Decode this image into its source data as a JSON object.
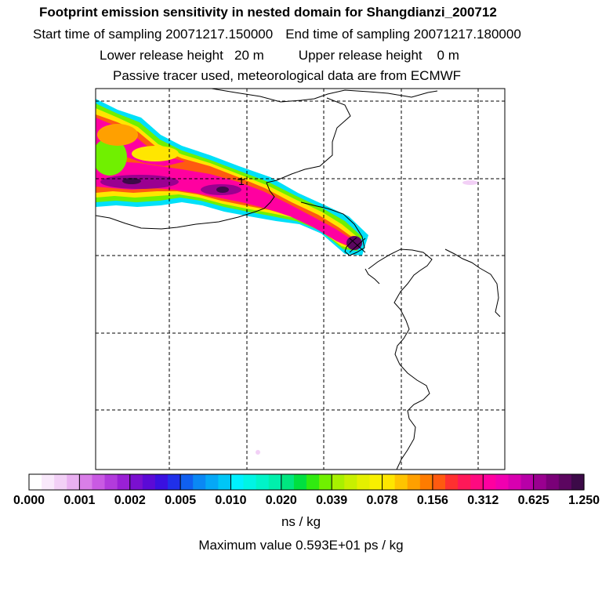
{
  "header": {
    "title": "Footprint emission sensitivity in nested domain for Shangdianzi_200712",
    "start_label": "Start time of sampling 20071217.150000",
    "end_label": "End time of sampling 20071217.180000",
    "lower_label": "Lower release height",
    "lower_value": "20 m",
    "upper_label": "Upper release height",
    "upper_value": "0 m",
    "note": "Passive tracer used, meteorological data are from ECMWF"
  },
  "chart_data": {
    "type": "heatmap",
    "title": "Footprint emission sensitivity in nested domain for Shangdianzi_200712",
    "colorbar": {
      "tick_labels": [
        "0.000",
        "0.001",
        "0.002",
        "0.005",
        "0.010",
        "0.020",
        "0.039",
        "0.078",
        "0.156",
        "0.312",
        "0.625",
        "1.250"
      ],
      "units": "ns / kg",
      "colors": [
        [
          "#ffffff",
          "#f9e9fb",
          "#f2d0f6",
          "#e9b0f1"
        ],
        [
          "#d97ee8",
          "#c95ae3",
          "#b23bdc",
          "#9a20d5"
        ],
        [
          "#7a10d0",
          "#5b0ad6",
          "#3a10e0",
          "#2030ea"
        ],
        [
          "#1060f0",
          "#0a88f4",
          "#05a8f6",
          "#00c6f6"
        ],
        [
          "#00f0ff",
          "#00f4e4",
          "#00f4c8",
          "#00f0ac"
        ],
        [
          "#00e680",
          "#00e040",
          "#30ea10",
          "#70f000"
        ],
        [
          "#a8f000",
          "#c8f000",
          "#e4f000",
          "#f8f000"
        ],
        [
          "#ffe600",
          "#ffc400",
          "#ffa000",
          "#ff7c00"
        ],
        [
          "#ff5a10",
          "#ff3030",
          "#ff1858",
          "#ff0a80"
        ],
        [
          "#ff00a0",
          "#f000b0",
          "#d800b0",
          "#b800a8"
        ],
        [
          "#9a0090",
          "#7a0078",
          "#5c0660",
          "#3c0a48"
        ]
      ]
    },
    "station": "Shangdianzi",
    "maximum_text": "Maximum value  0.593E+01 ps / kg",
    "gridlines": "dashed",
    "contour_label": "1"
  },
  "colors": {
    "background": "#ffffff",
    "coastline": "#000000"
  }
}
